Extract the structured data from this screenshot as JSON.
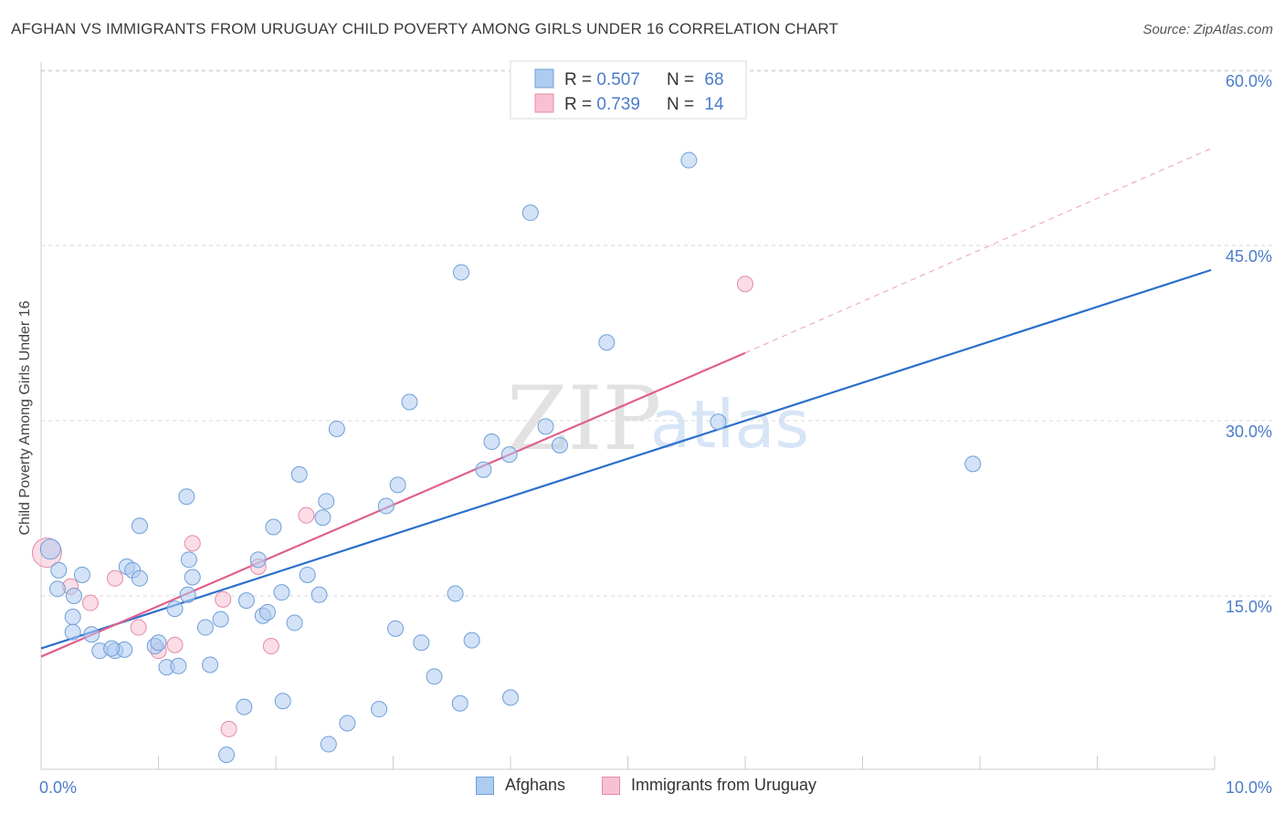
{
  "title": "AFGHAN VS IMMIGRANTS FROM URUGUAY CHILD POVERTY AMONG GIRLS UNDER 16 CORRELATION CHART",
  "source": "Source: ZipAtlas.com",
  "watermark": {
    "zip": "ZIP",
    "atlas": "atlas"
  },
  "colors": {
    "afghans_fill": "#aecbf0",
    "afghans_stroke": "#6f9fd8",
    "afghans_line": "#2b6fcc",
    "uruguay_fill": "#f8c1d2",
    "uruguay_stroke": "#e48aa8",
    "uruguay_line": "#e0608a",
    "tick_text": "#4a7cc9",
    "grid": "#d9d9d9"
  },
  "legend_top": [
    {
      "r_label": "R = ",
      "r_value": "0.507",
      "n_label": "N = ",
      "n_value": "68"
    },
    {
      "r_label": "R = ",
      "r_value": "0.739",
      "n_label": "N = ",
      "n_value": "14"
    }
  ],
  "legend_bottom": [
    "Afghans",
    "Immigrants from Uruguay"
  ],
  "chart_data": {
    "type": "scatter",
    "title": "AFGHAN VS IMMIGRANTS FROM URUGUAY CHILD POVERTY AMONG GIRLS UNDER 16 CORRELATION CHART",
    "xlabel": "",
    "ylabel": "Child Poverty Among Girls Under 16",
    "xlim": [
      0,
      10
    ],
    "ylim": [
      0,
      65
    ],
    "x_tick_labels": [
      "0.0%",
      "10.0%"
    ],
    "y_ticks": [
      15,
      30,
      45,
      60
    ],
    "y_tick_labels": [
      "15.0%",
      "30.0%",
      "45.0%",
      "60.0%"
    ],
    "grid": "horizontal dashed",
    "legend_placement": "top-center",
    "series": [
      {
        "name": "Afghans",
        "points": [
          [
            0.08,
            19.0
          ],
          [
            0.15,
            17.2
          ],
          [
            0.14,
            15.6
          ],
          [
            0.27,
            13.2
          ],
          [
            0.28,
            15.0
          ],
          [
            0.43,
            11.7
          ],
          [
            0.35,
            16.8
          ],
          [
            0.27,
            11.9
          ],
          [
            0.5,
            10.3
          ],
          [
            0.63,
            10.3
          ],
          [
            0.71,
            10.4
          ],
          [
            0.6,
            10.5
          ],
          [
            0.73,
            17.5
          ],
          [
            0.78,
            17.2
          ],
          [
            0.84,
            16.5
          ],
          [
            0.97,
            10.7
          ],
          [
            1.0,
            11.0
          ],
          [
            1.07,
            8.9
          ],
          [
            1.17,
            9.0
          ],
          [
            1.14,
            13.9
          ],
          [
            1.25,
            15.1
          ],
          [
            1.29,
            16.6
          ],
          [
            1.26,
            18.1
          ],
          [
            0.84,
            21.0
          ],
          [
            1.24,
            23.5
          ],
          [
            1.4,
            12.3
          ],
          [
            1.53,
            13.0
          ],
          [
            1.44,
            9.1
          ],
          [
            1.73,
            5.5
          ],
          [
            1.58,
            1.4
          ],
          [
            1.75,
            14.6
          ],
          [
            1.89,
            13.3
          ],
          [
            1.93,
            13.6
          ],
          [
            1.85,
            18.1
          ],
          [
            1.98,
            20.9
          ],
          [
            2.05,
            15.3
          ],
          [
            2.06,
            6.0
          ],
          [
            2.16,
            12.7
          ],
          [
            2.2,
            25.4
          ],
          [
            2.27,
            16.8
          ],
          [
            2.37,
            15.1
          ],
          [
            2.4,
            21.7
          ],
          [
            2.43,
            23.1
          ],
          [
            2.45,
            2.3
          ],
          [
            2.52,
            29.3
          ],
          [
            2.61,
            4.1
          ],
          [
            2.88,
            5.3
          ],
          [
            2.94,
            22.7
          ],
          [
            3.02,
            12.2
          ],
          [
            3.04,
            24.5
          ],
          [
            3.14,
            31.6
          ],
          [
            3.24,
            11.0
          ],
          [
            3.35,
            8.1
          ],
          [
            3.53,
            15.2
          ],
          [
            3.57,
            5.8
          ],
          [
            3.67,
            11.2
          ],
          [
            3.77,
            25.8
          ],
          [
            3.84,
            28.2
          ],
          [
            3.99,
            27.1
          ],
          [
            4.3,
            29.5
          ],
          [
            4.42,
            27.9
          ],
          [
            4.0,
            6.3
          ],
          [
            3.58,
            42.7
          ],
          [
            4.17,
            47.8
          ],
          [
            4.82,
            36.7
          ],
          [
            5.52,
            52.3
          ],
          [
            5.77,
            29.9
          ],
          [
            7.94,
            26.3
          ]
        ],
        "trend": {
          "x": [
            0.0,
            9.97
          ],
          "y": [
            10.5,
            42.9
          ]
        }
      },
      {
        "name": "Immigrants from Uruguay",
        "points": [
          [
            0.05,
            18.7
          ],
          [
            0.25,
            15.8
          ],
          [
            0.42,
            14.4
          ],
          [
            0.63,
            16.5
          ],
          [
            0.83,
            12.3
          ],
          [
            1.0,
            10.3
          ],
          [
            1.14,
            10.8
          ],
          [
            1.29,
            19.5
          ],
          [
            1.55,
            14.7
          ],
          [
            1.6,
            3.6
          ],
          [
            1.85,
            17.5
          ],
          [
            1.96,
            10.7
          ],
          [
            2.26,
            21.9
          ],
          [
            6.0,
            41.7
          ]
        ],
        "trend": {
          "x": [
            0.0,
            6.0
          ],
          "y": [
            9.8,
            35.8
          ]
        },
        "trend_extension": {
          "x": [
            6.0,
            9.97
          ],
          "y": [
            35.8,
            53.3
          ]
        }
      }
    ]
  }
}
